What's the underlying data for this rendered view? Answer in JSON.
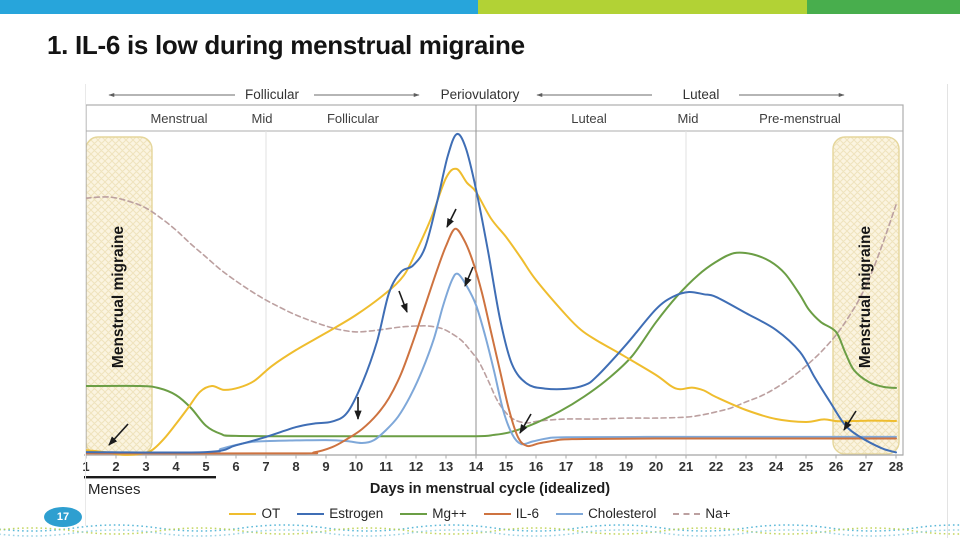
{
  "slide": {
    "title": "1. IL-6 is low during menstrual migraine",
    "page_number": "17"
  },
  "theme": {
    "topbar_colors": [
      "#27A5DB",
      "#B2D235",
      "#48AE4D"
    ],
    "badge_color": "#2E9FD0",
    "wave_colors": [
      "#4AB1D4",
      "#BDD14D",
      "#8FCDE0"
    ]
  },
  "chart_data": {
    "type": "line",
    "title": "",
    "phases": [
      "Follicular",
      "Periovulatory",
      "Luteal"
    ],
    "sub_phases": [
      "Menstrual",
      "Mid",
      "Follicular",
      "Luteal",
      "Mid",
      "Pre-menstrual"
    ],
    "x": {
      "label": "Days in menstrual cycle (idealized)",
      "min": 1,
      "max": 28,
      "days": [
        1,
        2,
        3,
        4,
        5,
        6,
        7,
        8,
        9,
        10,
        11,
        12,
        13,
        14,
        15,
        16,
        17,
        18,
        19,
        20,
        21,
        22,
        23,
        24,
        25,
        26,
        27,
        28
      ]
    },
    "y_axis_visible": false,
    "units": "relative level 0-100 (no y-axis labels shown)",
    "gridlines": {
      "light": [
        7,
        21
      ],
      "dark": [
        14
      ]
    },
    "menses": {
      "label": "Menses",
      "day_start": 1,
      "day_end": 5.3
    },
    "legend_position": "bottom",
    "series": [
      {
        "name": "OT",
        "color": "#EFBD2E",
        "dash": false,
        "points": [
          [
            1,
            1.5
          ],
          [
            1.6,
            0.9
          ],
          [
            2.2,
            0.1
          ],
          [
            2.8,
            0.3
          ],
          [
            3.2,
            1.5
          ],
          [
            3.6,
            5
          ],
          [
            4,
            9.6
          ],
          [
            4.4,
            14.5
          ],
          [
            4.8,
            19.5
          ],
          [
            5.2,
            21.3
          ],
          [
            5.6,
            20.1
          ],
          [
            6.1,
            20.8
          ],
          [
            6.6,
            22.8
          ],
          [
            7.2,
            27.5
          ],
          [
            8,
            32.4
          ],
          [
            9,
            37.7
          ],
          [
            10,
            43.2
          ],
          [
            11,
            50
          ],
          [
            11.6,
            55.5
          ],
          [
            12,
            62.7
          ],
          [
            12.5,
            73
          ],
          [
            13,
            85.5
          ],
          [
            13.35,
            88.3
          ],
          [
            13.7,
            84
          ],
          [
            14,
            81.2
          ],
          [
            14.5,
            73
          ],
          [
            15,
            67.3
          ],
          [
            15.5,
            60.8
          ],
          [
            16,
            54
          ],
          [
            17,
            43.2
          ],
          [
            17.5,
            38.6
          ],
          [
            18,
            35.5
          ],
          [
            19,
            30.2
          ],
          [
            20,
            24.7
          ],
          [
            20.5,
            21.3
          ],
          [
            20.8,
            20.3
          ],
          [
            21.2,
            20.8
          ],
          [
            21.6,
            19.9
          ],
          [
            22,
            17.9
          ],
          [
            23,
            13.9
          ],
          [
            24,
            11.1
          ],
          [
            25,
            10.2
          ],
          [
            25.6,
            11
          ],
          [
            26.1,
            10.4
          ],
          [
            27,
            10.6
          ],
          [
            28,
            10.5
          ]
        ]
      },
      {
        "name": "Estrogen",
        "color": "#3F6EB5",
        "dash": false,
        "points": [
          [
            1,
            0.9
          ],
          [
            5,
            0.9
          ],
          [
            6,
            3
          ],
          [
            7,
            5.6
          ],
          [
            8,
            8.6
          ],
          [
            8.6,
            9.7
          ],
          [
            9.2,
            10.3
          ],
          [
            9.7,
            13
          ],
          [
            10.2,
            22
          ],
          [
            10.7,
            35
          ],
          [
            11.1,
            50
          ],
          [
            11.5,
            56.5
          ],
          [
            11.9,
            58.5
          ],
          [
            12.3,
            64
          ],
          [
            12.7,
            78
          ],
          [
            13.05,
            92
          ],
          [
            13.35,
            99
          ],
          [
            13.65,
            95
          ],
          [
            14,
            82
          ],
          [
            14.4,
            63
          ],
          [
            14.8,
            42
          ],
          [
            15.2,
            28
          ],
          [
            15.7,
            22
          ],
          [
            16.3,
            20.5
          ],
          [
            17,
            20.4
          ],
          [
            17.6,
            21.5
          ],
          [
            18,
            24
          ],
          [
            19,
            34
          ],
          [
            20,
            45
          ],
          [
            20.6,
            49
          ],
          [
            21.1,
            50.3
          ],
          [
            21.6,
            49.6
          ],
          [
            22,
            48.8
          ],
          [
            23,
            43.8
          ],
          [
            24,
            38.6
          ],
          [
            24.8,
            31.8
          ],
          [
            25.3,
            23.8
          ],
          [
            25.8,
            16.4
          ],
          [
            26.3,
            9.3
          ],
          [
            26.8,
            5.6
          ],
          [
            27.5,
            2.2
          ],
          [
            28,
            0.8
          ]
        ]
      },
      {
        "name": "Mg++",
        "color": "#6B9E45",
        "dash": false,
        "points": [
          [
            1,
            21.3
          ],
          [
            2.8,
            21.3
          ],
          [
            3.4,
            20.7
          ],
          [
            4,
            18.5
          ],
          [
            4.5,
            14.5
          ],
          [
            5,
            9
          ],
          [
            5.5,
            6.5
          ],
          [
            6,
            5.9
          ],
          [
            9,
            5.8
          ],
          [
            12,
            5.8
          ],
          [
            14,
            5.8
          ],
          [
            14.6,
            6.2
          ],
          [
            15.2,
            7.2
          ],
          [
            16,
            9.9
          ],
          [
            16.8,
            13.5
          ],
          [
            17.6,
            18
          ],
          [
            18.4,
            23.5
          ],
          [
            19.2,
            30.5
          ],
          [
            20,
            41
          ],
          [
            20.7,
            49
          ],
          [
            21.4,
            55.5
          ],
          [
            22,
            59.6
          ],
          [
            22.6,
            62.3
          ],
          [
            23.2,
            62
          ],
          [
            23.8,
            59.8
          ],
          [
            24.3,
            56
          ],
          [
            24.8,
            49.4
          ],
          [
            25.1,
            44.8
          ],
          [
            25.5,
            41
          ],
          [
            26,
            38
          ],
          [
            26.3,
            31.8
          ],
          [
            26.6,
            26.2
          ],
          [
            27.1,
            22.5
          ],
          [
            27.6,
            21
          ],
          [
            28,
            20.7
          ]
        ]
      },
      {
        "name": "IL-6",
        "color": "#CE7340",
        "dash": false,
        "points": [
          [
            1,
            0.5
          ],
          [
            8,
            0.5
          ],
          [
            8.6,
            0.8
          ],
          [
            9.2,
            2.4
          ],
          [
            9.7,
            4.9
          ],
          [
            10.2,
            8
          ],
          [
            10.7,
            12.5
          ],
          [
            11.1,
            17.6
          ],
          [
            11.5,
            25
          ],
          [
            11.9,
            35
          ],
          [
            12.3,
            46
          ],
          [
            12.7,
            57
          ],
          [
            13,
            64.5
          ],
          [
            13.3,
            69.8
          ],
          [
            13.6,
            66.4
          ],
          [
            13.9,
            59.6
          ],
          [
            14.2,
            50
          ],
          [
            14.5,
            38
          ],
          [
            14.8,
            26
          ],
          [
            15.1,
            14
          ],
          [
            15.4,
            5.5
          ],
          [
            15.7,
            2.8
          ],
          [
            16.1,
            3.6
          ],
          [
            16.6,
            4.4
          ],
          [
            17.2,
            4.9
          ],
          [
            20,
            5.1
          ],
          [
            24,
            5.1
          ],
          [
            28,
            5.1
          ]
        ]
      },
      {
        "name": "Cholesterol",
        "color": "#7FA8D9",
        "dash": false,
        "points": [
          [
            1,
            0.6
          ],
          [
            5,
            0.6
          ],
          [
            5.5,
            1.9
          ],
          [
            6,
            3.1
          ],
          [
            6.5,
            4
          ],
          [
            7,
            4.3
          ],
          [
            8,
            4.5
          ],
          [
            9,
            4.6
          ],
          [
            9.7,
            4.3
          ],
          [
            10.2,
            3.7
          ],
          [
            10.6,
            4.6
          ],
          [
            11,
            7.7
          ],
          [
            11.4,
            11.8
          ],
          [
            11.8,
            18
          ],
          [
            12.2,
            26
          ],
          [
            12.6,
            36
          ],
          [
            12.9,
            46
          ],
          [
            13.2,
            54
          ],
          [
            13.4,
            55.9
          ],
          [
            13.7,
            52
          ],
          [
            14,
            46.3
          ],
          [
            14.3,
            37
          ],
          [
            14.6,
            26
          ],
          [
            14.9,
            14
          ],
          [
            15.2,
            6.5
          ],
          [
            15.5,
            3.4
          ],
          [
            15.9,
            4.2
          ],
          [
            16.4,
            5.2
          ],
          [
            17,
            5.5
          ],
          [
            20,
            5.6
          ],
          [
            24,
            5.6
          ],
          [
            28,
            5.6
          ]
        ]
      },
      {
        "name": "Na+",
        "color": "#BCA0A0",
        "dash": true,
        "points": [
          [
            1,
            79.3
          ],
          [
            1.8,
            79.6
          ],
          [
            2.5,
            78.1
          ],
          [
            3,
            76.2
          ],
          [
            3.5,
            73.1
          ],
          [
            4,
            69.4
          ],
          [
            4.5,
            65.1
          ],
          [
            5,
            61.1
          ],
          [
            5.5,
            57.1
          ],
          [
            6,
            53.7
          ],
          [
            6.5,
            50.6
          ],
          [
            7,
            47.8
          ],
          [
            7.5,
            45.4
          ],
          [
            8,
            43.2
          ],
          [
            8.5,
            41.4
          ],
          [
            9,
            39.8
          ],
          [
            9.5,
            38.6
          ],
          [
            10,
            38
          ],
          [
            10.5,
            38.3
          ],
          [
            11,
            38.9
          ],
          [
            11.5,
            39.5
          ],
          [
            12,
            39.8
          ],
          [
            12.4,
            39.8
          ],
          [
            12.8,
            39.2
          ],
          [
            13.1,
            38
          ],
          [
            13.5,
            35.5
          ],
          [
            13.8,
            32.4
          ],
          [
            14.1,
            28.7
          ],
          [
            14.4,
            23.1
          ],
          [
            14.7,
            17
          ],
          [
            15,
            13
          ],
          [
            15.3,
            10.8
          ],
          [
            15.7,
            9.9
          ],
          [
            16.1,
            10.5
          ],
          [
            17,
            11.1
          ],
          [
            18,
            11.1
          ],
          [
            19,
            11.4
          ],
          [
            20,
            11.4
          ],
          [
            21,
            11.7
          ],
          [
            21.5,
            12.3
          ],
          [
            22,
            13.3
          ],
          [
            22.5,
            14.5
          ],
          [
            23,
            16.4
          ],
          [
            23.5,
            18.2
          ],
          [
            24,
            20.7
          ],
          [
            24.5,
            23.8
          ],
          [
            25,
            27.5
          ],
          [
            25.5,
            31.8
          ],
          [
            26,
            37
          ],
          [
            26.4,
            42.3
          ],
          [
            26.8,
            48.5
          ],
          [
            27.2,
            56.5
          ],
          [
            27.6,
            66.4
          ],
          [
            28,
            77.2
          ]
        ]
      }
    ],
    "annotations": {
      "regions": [
        {
          "label": "Menstrual migraine",
          "day_start": 1,
          "day_end": 3.2
        },
        {
          "label": "Menstrual migraine",
          "day_start": 25.9,
          "day_end": 28.1
        }
      ],
      "arrows": [
        [
          128,
          424,
          109,
          445
        ],
        [
          358,
          397,
          358,
          419
        ],
        [
          399,
          291,
          407,
          312
        ],
        [
          456,
          209,
          447,
          227
        ],
        [
          473,
          267,
          465,
          286
        ],
        [
          531,
          414,
          520,
          433
        ],
        [
          856,
          411,
          844,
          430
        ]
      ]
    }
  }
}
